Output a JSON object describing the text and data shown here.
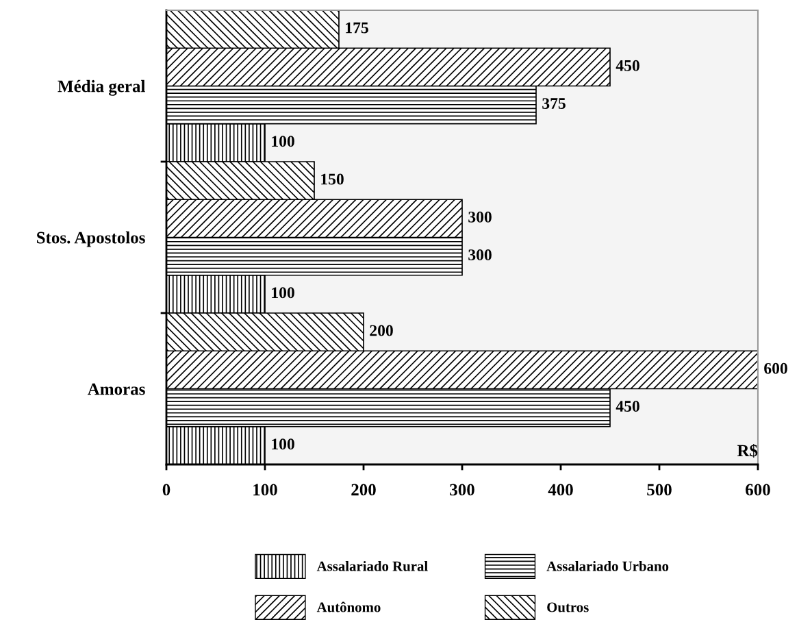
{
  "chart_data": {
    "type": "bar",
    "orientation": "horizontal",
    "categories": [
      "Média geral",
      "Stos. Apostolos",
      "Amoras"
    ],
    "series": [
      {
        "name": "Assalariado Rural",
        "color": "#000000",
        "values": [
          100,
          100,
          100
        ]
      },
      {
        "name": "Assalariado Urbano",
        "color": "#000000",
        "values": [
          375,
          300,
          450
        ]
      },
      {
        "name": "Autônomo",
        "color": "#000000",
        "values": [
          450,
          300,
          600
        ]
      },
      {
        "name": "Outros",
        "color": "#000000",
        "values": [
          175,
          150,
          200
        ]
      }
    ],
    "xlabel": "R$",
    "xlim": [
      0,
      600
    ],
    "xticks": [
      0,
      100,
      200,
      300,
      400,
      500,
      600
    ],
    "data_labels": true,
    "legend": "bottom",
    "grid": false
  }
}
